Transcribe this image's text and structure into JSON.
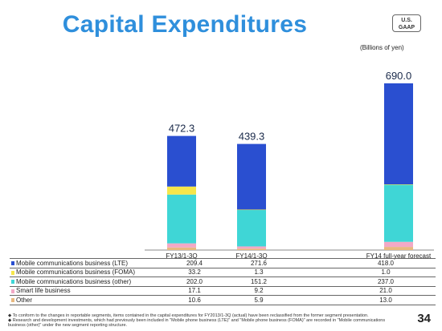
{
  "title": "Capital Expenditures",
  "badge": "U.S.\nGAAP",
  "badge_lines": [
    "U.S.",
    "GAAP"
  ],
  "units": "(Billions of yen)",
  "page_number": "34",
  "notes": [
    "◆ To conform to the changes in reportable segments, items contained in the capital expenditures for FY2013/1-3Q (actual) have been reclassified from the former segment presentation.",
    "◆ Research and development investments, which had previously been included in \"Mobile phone business (LTE)\" and \"Mobile phone business (FOMA)\" are recorded in \"Mobile communications",
    "   business (other)\" under the new segment reporting structure."
  ],
  "chart_data": {
    "type": "bar",
    "stacked": true,
    "categories": [
      "FY13/1-3Q",
      "FY14/1-3Q",
      "FY14 full-year forecast"
    ],
    "totals": [
      "472.3",
      "439.3",
      "690.0"
    ],
    "series": [
      {
        "name": "Other",
        "values": [
          10.6,
          5.9,
          13.0
        ],
        "display": [
          "10.6",
          "5.9",
          "13.0"
        ],
        "color": "#e8b980"
      },
      {
        "name": "Smart life business",
        "values": [
          17.1,
          9.2,
          21.0
        ],
        "display": [
          "17.1",
          "9.2",
          "21.0"
        ],
        "color": "#f2a9c6"
      },
      {
        "name": "Mobile communications business (other)",
        "values": [
          202.0,
          151.2,
          237.0
        ],
        "display": [
          "202.0",
          "151.2",
          "237.0"
        ],
        "color": "#3fd6d6"
      },
      {
        "name": "Mobile communications business (FOMA)",
        "values": [
          33.2,
          1.3,
          1.0
        ],
        "display": [
          "33.2",
          "1.3",
          "1.0"
        ],
        "color": "#f6e64a"
      },
      {
        "name": "Mobile communications business (LTE)",
        "values": [
          209.4,
          271.6,
          418.0
        ],
        "display": [
          "209.4",
          "271.6",
          "418.0"
        ],
        "color": "#2a4fd0"
      }
    ],
    "legend_order": [
      4,
      3,
      2,
      1,
      0
    ],
    "ylim": [
      0,
      700
    ],
    "grid": false
  }
}
